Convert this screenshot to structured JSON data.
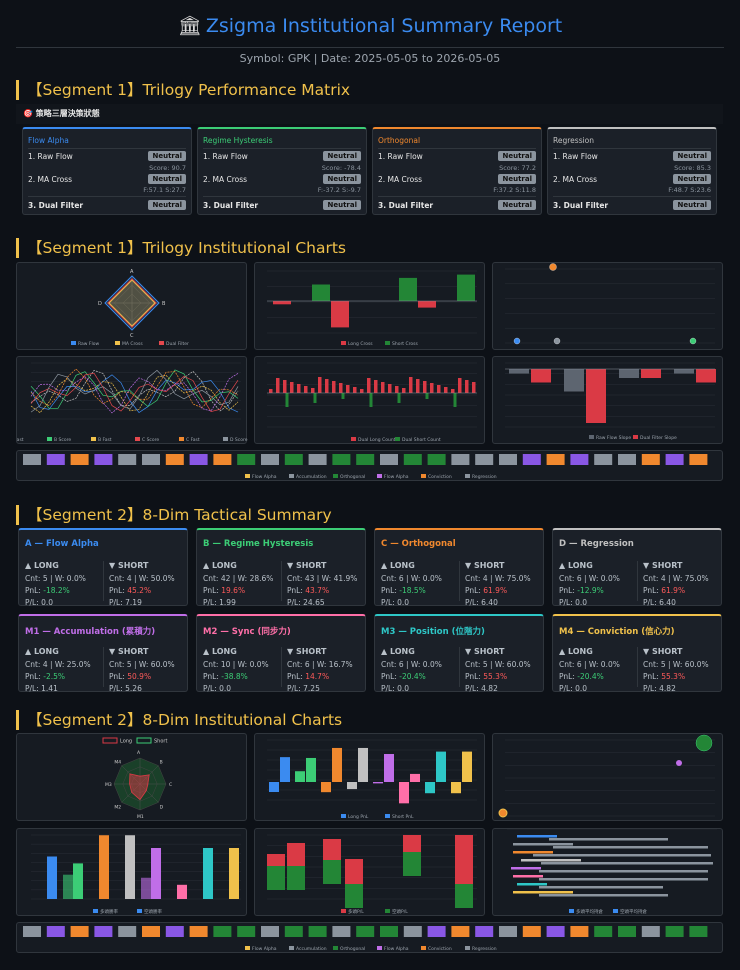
{
  "header": {
    "icon": "bank-icon",
    "title": "Zsigma Institutional Summary Report",
    "subtitle": "Symbol: GPK | Date: 2025-05-05 to 2026-05-05"
  },
  "seg1": {
    "title": "【Segment 1】Trilogy Performance Matrix",
    "strip": "🎯 策略三層決策狀態",
    "cards": [
      {
        "name": "Flow Alpha",
        "color": "#3b8bf0",
        "r1": "1. Raw Flow",
        "b1": "Neutral",
        "s1": "Score: 90.7",
        "r2": "2. MA Cross",
        "b2": "Neutral",
        "s2": "F:57.1 S:27.7",
        "r3": "3. Dual Filter",
        "b3": "Neutral"
      },
      {
        "name": "Regime Hysteresis",
        "color": "#3ccd76",
        "r1": "1. Raw Flow",
        "b1": "Neutral",
        "s1": "Score: -78.4",
        "r2": "2. MA Cross",
        "b2": "Neutral",
        "s2": "F:-37.2 S:-9.7",
        "r3": "3. Dual Filter",
        "b3": "Neutral"
      },
      {
        "name": "Orthogonal",
        "color": "#f0882e",
        "r1": "1. Raw Flow",
        "b1": "Neutral",
        "s1": "Score: 77.2",
        "r2": "2. MA Cross",
        "b2": "Neutral",
        "s2": "F:37.2 S:11.8",
        "r3": "3. Dual Filter",
        "b3": "Neutral"
      },
      {
        "name": "Regression",
        "color": "#c0c0c0",
        "r1": "1. Raw Flow",
        "b1": "Neutral",
        "s1": "Score: 85.3",
        "r2": "2. MA Cross",
        "b2": "Neutral",
        "s2": "F:48.7 S:23.6",
        "r3": "3. Dual Filter",
        "b3": "Neutral"
      }
    ],
    "charts_title": "【Segment 1】Trilogy Institutional Charts",
    "radar_axes": [
      "A",
      "B",
      "C",
      "D"
    ],
    "radar_legend": [
      "Raw Flow",
      "MA Cross",
      "Dual Filter"
    ],
    "bar_legend": [
      "Long Cross",
      "Short Cross"
    ],
    "cnt_legend": [
      "Dual Long Count",
      "Dual Short Count"
    ],
    "slope_legend": [
      "Raw Flow Slope",
      "Dual Filter Slope"
    ],
    "line_legend": [
      "A Score",
      "A Fast",
      "B Score",
      "B Fast",
      "C Score",
      "C Fast",
      "D Score",
      "D Fast"
    ],
    "heat_legend": [
      "Flow Alpha",
      "Accumulation",
      "Orthogonal",
      "Flow Alpha",
      "Conviction",
      "Regression"
    ]
  },
  "seg2": {
    "title": "【Segment 2】8-Dim Tactical Summary",
    "long": "▲ LONG",
    "short": "▼ SHORT",
    "cards": [
      {
        "name": "A — Flow Alpha",
        "color": "#3b8bf0",
        "lc": "Cnt: 5 | W: 0.0%",
        "lp": "-18.2%",
        "lr": "P/L: 0.0",
        "sc": "Cnt: 4 | W: 50.0%",
        "sp": "45.2%",
        "sr": "P/L: 7.19"
      },
      {
        "name": "B — Regime Hysteresis",
        "color": "#3ccd76",
        "lc": "Cnt: 42 | W: 28.6%",
        "lp": "19.6%",
        "lr": "P/L: 1.99",
        "sc": "Cnt: 43 | W: 41.9%",
        "sp": "43.7%",
        "sr": "P/L: 24.65"
      },
      {
        "name": "C — Orthogonal",
        "color": "#f0882e",
        "lc": "Cnt: 6 | W: 0.0%",
        "lp": "-18.5%",
        "lr": "P/L: 0.0",
        "sc": "Cnt: 4 | W: 75.0%",
        "sp": "61.9%",
        "sr": "P/L: 6.40"
      },
      {
        "name": "D — Regression",
        "color": "#c0c0c0",
        "lc": "Cnt: 6 | W: 0.0%",
        "lp": "-12.9%",
        "lr": "P/L: 0.0",
        "sc": "Cnt: 4 | W: 75.0%",
        "sp": "61.9%",
        "sr": "P/L: 6.40"
      },
      {
        "name": "M1 — Accumulation (累積力)",
        "color": "#c06ee8",
        "lc": "Cnt: 4 | W: 25.0%",
        "lp": "-2.5%",
        "lr": "P/L: 1.41",
        "sc": "Cnt: 5 | W: 60.0%",
        "sp": "50.9%",
        "sr": "P/L: 5.26"
      },
      {
        "name": "M2 — Sync (同步力)",
        "color": "#ff6fa8",
        "lc": "Cnt: 10 | W: 0.0%",
        "lp": "-38.8%",
        "lr": "P/L: 0.0",
        "sc": "Cnt: 6 | W: 16.7%",
        "sp": "14.7%",
        "sr": "P/L: 7.25"
      },
      {
        "name": "M3 — Position (位階力)",
        "color": "#2ec7c7",
        "lc": "Cnt: 6 | W: 0.0%",
        "lp": "-20.4%",
        "lr": "P/L: 0.0",
        "sc": "Cnt: 5 | W: 60.0%",
        "sp": "55.3%",
        "sr": "P/L: 4.82"
      },
      {
        "name": "M4 — Conviction (信心力)",
        "color": "#f0c14b",
        "lc": "Cnt: 6 | W: 0.0%",
        "lp": "-20.4%",
        "lr": "P/L: 0.0",
        "sc": "Cnt: 5 | W: 60.0%",
        "sp": "55.3%",
        "sr": "P/L: 4.82"
      }
    ],
    "charts_title": "【Segment 2】8-Dim Institutional Charts",
    "pnl_label": "PnL:",
    "radar_legend": [
      "Long",
      "Short"
    ],
    "radar_axes": [
      "A",
      "B",
      "C",
      "D",
      "M1",
      "M2",
      "M3",
      "M4"
    ],
    "bar_legend": [
      "Long PnL",
      "Short PnL"
    ],
    "wr_legend": [
      "多頭勝率",
      "空頭勝率"
    ],
    "pl_legend": [
      "多頭P/L",
      "空頭P/L"
    ],
    "hbar_legend": [
      "多頭平均持倉",
      "空頭平均持倉"
    ]
  },
  "chart_data": [
    {
      "type": "bar",
      "title": "",
      "series": [
        {
          "name": "Long Cross",
          "values": [
            -1,
            0,
            -8,
            0,
            0,
            -2,
            0
          ]
        },
        {
          "name": "Short Cross",
          "values": [
            0,
            5,
            0,
            0,
            7,
            0,
            8
          ]
        }
      ]
    },
    {
      "type": "scatter",
      "series": [
        {
          "name": "points",
          "values": [
            [
              2,
              8
            ],
            [
              4,
              6.5
            ],
            [
              10,
              1.2
            ],
            [
              11,
              1
            ]
          ]
        }
      ]
    },
    {
      "type": "bar",
      "series": [
        {
          "name": "Raw Flow Slope",
          "values": [
            -0.1,
            -0.5,
            -0.2,
            -0.1
          ]
        },
        {
          "name": "Dual Filter Slope",
          "values": [
            -0.3,
            -1.2,
            -0.2,
            -0.3
          ]
        }
      ]
    },
    {
      "type": "bar",
      "series": [
        {
          "name": "Long PnL",
          "values": [
            -18.2,
            19.6,
            -18.5,
            -12.9,
            -2.5,
            -38.8,
            -20.4,
            -20.4
          ]
        },
        {
          "name": "Short PnL",
          "values": [
            45.2,
            43.7,
            61.9,
            61.9,
            50.9,
            14.7,
            55.3,
            55.3
          ]
        }
      ]
    },
    {
      "type": "bar",
      "series": [
        {
          "name": "多頭勝率",
          "values": [
            0,
            28.6,
            0,
            0,
            25,
            0,
            0,
            0
          ]
        },
        {
          "name": "空頭勝率",
          "values": [
            50,
            41.9,
            75,
            75,
            60,
            16.7,
            60,
            60
          ]
        }
      ]
    }
  ]
}
